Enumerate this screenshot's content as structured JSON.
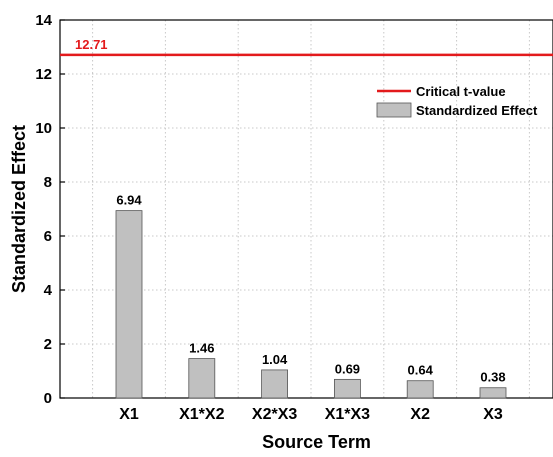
{
  "chart_data": {
    "type": "bar",
    "categories": [
      "X1",
      "X1*X2",
      "X2*X3",
      "X1*X3",
      "X2",
      "X3"
    ],
    "values": [
      6.94,
      1.46,
      1.04,
      0.69,
      0.64,
      0.38
    ],
    "value_labels": [
      "6.94",
      "1.46",
      "1.04",
      "0.69",
      "0.64",
      "0.38"
    ],
    "xlabel": "Source Term",
    "ylabel": "Standardized Effect",
    "ylim": [
      0,
      14
    ],
    "yticks": [
      0,
      2,
      4,
      6,
      8,
      10,
      12,
      14
    ],
    "grid": true,
    "bar_color": "#c0c0c0",
    "reference_line": {
      "name": "Critical t-value",
      "value": 12.71,
      "label": "12.71",
      "color": "#e31a1c"
    },
    "legend": {
      "placement": "top-right",
      "items": [
        {
          "label": "Critical t-value",
          "kind": "line"
        },
        {
          "label": "Standardized Effect",
          "kind": "bar"
        }
      ]
    }
  }
}
